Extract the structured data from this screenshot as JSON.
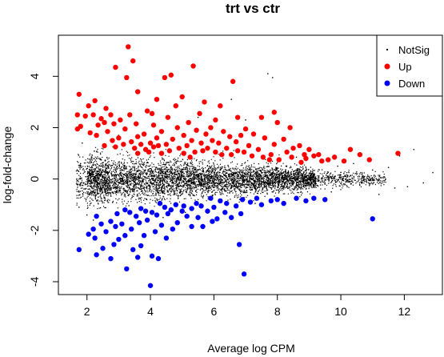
{
  "chart_data": {
    "type": "scatter",
    "title": "trt vs ctr",
    "xlabel": "Average log CPM",
    "ylabel": "log-fold-change",
    "xlim": [
      1.1,
      13.2
    ],
    "ylim": [
      -4.5,
      5.6
    ],
    "xticks": [
      "2",
      "4",
      "6",
      "8",
      "10",
      "12"
    ],
    "yticks": [
      "-4",
      "-2",
      "0",
      "2",
      "4"
    ],
    "legend": {
      "placement": "top-right",
      "entries": [
        {
          "label": "NotSig",
          "color": "#000000"
        },
        {
          "label": "Up",
          "color": "#ff0000"
        },
        {
          "label": "Down",
          "color": "#0000ff"
        }
      ]
    },
    "series": [
      {
        "name": "NotSig",
        "color": "#000000",
        "points": [
          [
            7.7,
            4.1
          ],
          [
            7.85,
            3.95
          ],
          [
            6.55,
            3.1
          ],
          [
            7.0,
            2.3
          ],
          [
            5.5,
            2.4
          ],
          [
            12.3,
            1.15
          ],
          [
            12.9,
            0.25
          ],
          [
            12.1,
            -0.3
          ],
          [
            11.7,
            -0.35
          ],
          [
            11.5,
            0.45
          ],
          [
            11.2,
            -0.6
          ],
          [
            11.0,
            0.35
          ],
          [
            10.8,
            -0.1
          ],
          [
            10.6,
            0.2
          ],
          [
            10.4,
            0.6
          ],
          [
            10.2,
            -0.3
          ],
          [
            9.9,
            0.5
          ],
          [
            9.7,
            -0.5
          ],
          [
            9.6,
            0.1
          ],
          [
            9.5,
            -0.2
          ],
          [
            10.0,
            0.05
          ],
          [
            10.3,
            -0.1
          ],
          [
            1.7,
            -0.2
          ],
          [
            1.8,
            0.6
          ],
          [
            1.75,
            -1.1
          ],
          [
            2.0,
            -1.4
          ],
          [
            1.85,
            1.4
          ],
          [
            2.2,
            -1.6
          ],
          [
            3.0,
            1.7
          ],
          [
            4.4,
            -1.5
          ],
          [
            5.1,
            -1.3
          ],
          [
            7.3,
            -0.95
          ],
          [
            8.1,
            0.8
          ],
          [
            8.6,
            0.85
          ],
          [
            9.1,
            -0.7
          ],
          [
            11.85,
            0.9
          ],
          [
            12.6,
            -0.15
          ]
        ]
      },
      {
        "name": "Up",
        "color": "#ff0000",
        "points": [
          [
            3.3,
            5.15
          ],
          [
            3.45,
            4.6
          ],
          [
            2.9,
            4.35
          ],
          [
            5.35,
            4.4
          ],
          [
            4.65,
            4.05
          ],
          [
            4.45,
            3.95
          ],
          [
            3.25,
            3.95
          ],
          [
            3.6,
            3.4
          ],
          [
            6.6,
            3.8
          ],
          [
            1.75,
            3.3
          ],
          [
            4.2,
            3.1
          ],
          [
            5.0,
            3.2
          ],
          [
            2.25,
            3.05
          ],
          [
            5.7,
            3.0
          ],
          [
            4.8,
            2.85
          ],
          [
            6.2,
            2.85
          ],
          [
            2.05,
            2.85
          ],
          [
            3.9,
            2.65
          ],
          [
            2.6,
            2.75
          ],
          [
            5.55,
            2.55
          ],
          [
            4.05,
            2.55
          ],
          [
            6.05,
            2.3
          ],
          [
            7.5,
            2.4
          ],
          [
            3.05,
            2.3
          ],
          [
            4.55,
            2.4
          ],
          [
            1.7,
            2.5
          ],
          [
            1.95,
            2.45
          ],
          [
            2.2,
            2.5
          ],
          [
            2.45,
            2.35
          ],
          [
            7.9,
            2.6
          ],
          [
            3.35,
            2.5
          ],
          [
            2.75,
            2.5
          ],
          [
            6.75,
            2.4
          ],
          [
            8.0,
            2.2
          ],
          [
            5.2,
            2.2
          ],
          [
            4.1,
            2.1
          ],
          [
            1.8,
            2.05
          ],
          [
            2.35,
            2.1
          ],
          [
            2.55,
            2.2
          ],
          [
            3.55,
            2.15
          ],
          [
            2.85,
            2.15
          ],
          [
            4.85,
            2.0
          ],
          [
            5.9,
            2.0
          ],
          [
            7.0,
            1.95
          ],
          [
            1.7,
            1.95
          ],
          [
            2.1,
            1.8
          ],
          [
            6.3,
            1.85
          ],
          [
            3.2,
            1.95
          ],
          [
            5.45,
            1.9
          ],
          [
            8.4,
            2.0
          ],
          [
            3.8,
            1.75
          ],
          [
            4.35,
            1.85
          ],
          [
            2.65,
            1.85
          ],
          [
            6.85,
            1.7
          ],
          [
            7.25,
            1.75
          ],
          [
            5.05,
            1.7
          ],
          [
            5.75,
            1.75
          ],
          [
            2.3,
            1.7
          ],
          [
            6.5,
            1.65
          ],
          [
            3.6,
            1.65
          ],
          [
            4.2,
            1.6
          ],
          [
            7.6,
            1.6
          ],
          [
            8.2,
            1.55
          ],
          [
            3.0,
            1.6
          ],
          [
            4.7,
            1.55
          ],
          [
            5.3,
            1.5
          ],
          [
            5.95,
            1.5
          ],
          [
            6.7,
            1.45
          ],
          [
            7.9,
            1.35
          ],
          [
            8.7,
            1.3
          ],
          [
            3.4,
            1.45
          ],
          [
            2.8,
            1.5
          ],
          [
            4.0,
            1.4
          ],
          [
            5.6,
            1.4
          ],
          [
            6.15,
            1.4
          ],
          [
            7.1,
            1.3
          ],
          [
            4.5,
            1.35
          ],
          [
            3.7,
            1.35
          ],
          [
            5.15,
            1.3
          ],
          [
            8.5,
            1.2
          ],
          [
            9.0,
            1.15
          ],
          [
            2.55,
            1.3
          ],
          [
            3.15,
            1.35
          ],
          [
            4.25,
            1.3
          ],
          [
            4.9,
            1.2
          ],
          [
            6.4,
            1.2
          ],
          [
            7.4,
            1.15
          ],
          [
            5.8,
            1.2
          ],
          [
            8.3,
            1.05
          ],
          [
            9.3,
            0.95
          ],
          [
            10.3,
            1.15
          ],
          [
            11.8,
            1.0
          ],
          [
            10.6,
            0.95
          ],
          [
            9.8,
            0.85
          ],
          [
            8.9,
            0.8
          ],
          [
            7.8,
            0.95
          ],
          [
            6.95,
            1.05
          ],
          [
            6.05,
            1.05
          ],
          [
            5.4,
            1.05
          ],
          [
            4.6,
            1.1
          ],
          [
            3.85,
            1.15
          ],
          [
            3.5,
            1.2
          ],
          [
            2.9,
            1.25
          ],
          [
            9.6,
            0.75
          ],
          [
            8.05,
            0.75
          ],
          [
            10.9,
            0.75
          ],
          [
            10.1,
            0.7
          ],
          [
            9.4,
            0.7
          ],
          [
            8.75,
            0.65
          ],
          [
            7.55,
            0.85
          ],
          [
            6.55,
            0.95
          ],
          [
            5.05,
            1.0
          ],
          [
            4.35,
            1.0
          ],
          [
            3.95,
            1.05
          ],
          [
            4.1,
            1.25
          ],
          [
            5.65,
            1.1
          ],
          [
            6.75,
            1.1
          ],
          [
            7.2,
            0.9
          ],
          [
            8.45,
            0.85
          ],
          [
            9.15,
            0.9
          ],
          [
            3.6,
            1.0
          ],
          [
            5.25,
            0.85
          ],
          [
            6.25,
            0.95
          ],
          [
            7.75,
            0.75
          ],
          [
            8.85,
            0.95
          ]
        ]
      },
      {
        "name": "Down",
        "color": "#0000ff",
        "points": [
          [
            4.0,
            -4.15
          ],
          [
            6.95,
            -3.7
          ],
          [
            3.25,
            -3.5
          ],
          [
            4.25,
            -3.1
          ],
          [
            4.05,
            -3.0
          ],
          [
            3.6,
            -3.05
          ],
          [
            2.75,
            -3.1
          ],
          [
            2.3,
            -2.95
          ],
          [
            6.8,
            -2.55
          ],
          [
            1.75,
            -2.75
          ],
          [
            3.45,
            -2.75
          ],
          [
            3.7,
            -2.6
          ],
          [
            2.5,
            -2.7
          ],
          [
            2.85,
            -2.55
          ],
          [
            3.0,
            -2.35
          ],
          [
            2.25,
            -2.3
          ],
          [
            4.5,
            -2.3
          ],
          [
            2.05,
            -2.15
          ],
          [
            3.2,
            -2.2
          ],
          [
            3.8,
            -2.2
          ],
          [
            4.15,
            -2.05
          ],
          [
            2.6,
            -2.05
          ],
          [
            2.2,
            -1.95
          ],
          [
            4.7,
            -1.95
          ],
          [
            3.4,
            -1.95
          ],
          [
            2.9,
            -1.85
          ],
          [
            5.3,
            -1.85
          ],
          [
            5.65,
            -1.85
          ],
          [
            4.35,
            -1.8
          ],
          [
            2.45,
            -1.75
          ],
          [
            3.1,
            -1.75
          ],
          [
            3.65,
            -1.7
          ],
          [
            4.85,
            -1.7
          ],
          [
            2.75,
            -1.65
          ],
          [
            5.95,
            -1.65
          ],
          [
            6.1,
            -1.55
          ],
          [
            11.0,
            -1.55
          ],
          [
            6.55,
            -1.5
          ],
          [
            3.9,
            -1.6
          ],
          [
            5.5,
            -1.5
          ],
          [
            5.15,
            -1.45
          ],
          [
            2.3,
            -1.45
          ],
          [
            3.55,
            -1.45
          ],
          [
            4.2,
            -1.4
          ],
          [
            4.55,
            -1.35
          ],
          [
            6.35,
            -1.3
          ],
          [
            6.85,
            -1.35
          ],
          [
            2.95,
            -1.35
          ],
          [
            3.35,
            -1.3
          ],
          [
            3.85,
            -1.25
          ],
          [
            5.0,
            -1.25
          ],
          [
            5.8,
            -1.25
          ],
          [
            4.65,
            -1.2
          ],
          [
            5.3,
            -1.15
          ],
          [
            6.0,
            -1.1
          ],
          [
            6.7,
            -1.05
          ],
          [
            7.5,
            -1.0
          ],
          [
            8.2,
            -0.95
          ],
          [
            8.9,
            -0.85
          ],
          [
            9.5,
            -0.8
          ],
          [
            9.15,
            -0.75
          ],
          [
            8.6,
            -0.75
          ],
          [
            7.8,
            -0.85
          ],
          [
            7.15,
            -0.9
          ],
          [
            6.4,
            -0.95
          ],
          [
            5.6,
            -1.05
          ],
          [
            5.05,
            -1.05
          ],
          [
            4.45,
            -1.1
          ],
          [
            3.7,
            -1.15
          ],
          [
            3.2,
            -1.2
          ],
          [
            4.05,
            -1.3
          ],
          [
            4.8,
            -1.0
          ],
          [
            5.45,
            -0.95
          ],
          [
            6.2,
            -0.85
          ],
          [
            6.9,
            -0.8
          ],
          [
            7.35,
            -0.75
          ],
          [
            8.0,
            -0.8
          ],
          [
            5.9,
            -0.75
          ],
          [
            4.3,
            -0.95
          ]
        ]
      }
    ]
  }
}
